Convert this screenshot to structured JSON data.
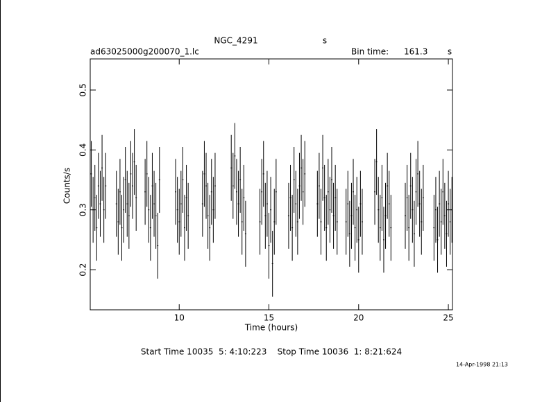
{
  "chart_data": {
    "type": "errorbar",
    "title": "NGC_4291",
    "title_unit": "s",
    "file_name": "ad63025000g200070_1.lc",
    "bin_time_label": "Bin time:",
    "bin_time": 161.3,
    "bin_time_unit": "s",
    "xlabel": "Time (hours)",
    "ylabel": "Counts/s",
    "footer": "Start Time 10035  5: 4:10:223    Stop Time 10036  1: 8:21:624",
    "date": "14-Apr-1998 21:13",
    "xlim": [
      5.04,
      25.23
    ],
    "ylim": [
      0.133,
      0.552
    ],
    "xticks": [
      10,
      15,
      20,
      25
    ],
    "yticks": [
      0.2,
      0.3,
      0.4,
      0.5
    ],
    "grid": false,
    "color": "#000000",
    "yerr": 0.055,
    "x": [
      5.1,
      5.2,
      5.3,
      5.4,
      5.5,
      5.6,
      5.7,
      5.8,
      5.9,
      6.5,
      6.6,
      6.7,
      6.8,
      6.9,
      7.0,
      7.1,
      7.2,
      7.3,
      7.4,
      7.5,
      7.6,
      8.1,
      8.2,
      8.3,
      8.4,
      8.5,
      8.6,
      8.7,
      8.8,
      8.9,
      9.8,
      9.9,
      10.0,
      10.1,
      10.2,
      10.3,
      10.4,
      10.5,
      11.3,
      11.4,
      11.5,
      11.6,
      11.7,
      11.8,
      11.9,
      12.0,
      12.9,
      13.0,
      13.1,
      13.2,
      13.3,
      13.4,
      13.5,
      13.6,
      13.7,
      14.5,
      14.6,
      14.7,
      14.8,
      14.9,
      15.0,
      15.1,
      15.2,
      15.3,
      15.4,
      16.1,
      16.2,
      16.3,
      16.4,
      16.5,
      16.6,
      16.7,
      16.8,
      16.9,
      17.0,
      17.7,
      17.8,
      17.9,
      18.0,
      18.1,
      18.2,
      18.3,
      18.4,
      18.5,
      18.6,
      18.7,
      18.8,
      19.3,
      19.4,
      19.5,
      19.6,
      19.7,
      19.8,
      19.9,
      20.0,
      20.1,
      20.2,
      20.9,
      21.0,
      21.1,
      21.2,
      21.3,
      21.4,
      21.5,
      21.6,
      21.7,
      21.8,
      22.6,
      22.7,
      22.8,
      22.9,
      23.0,
      23.1,
      23.2,
      23.3,
      23.4,
      23.5,
      23.6,
      24.2,
      24.3,
      24.4,
      24.5,
      24.6,
      24.7,
      24.8,
      24.9,
      25.0,
      25.1,
      25.2
    ],
    "values": [
      0.36,
      0.3,
      0.32,
      0.27,
      0.34,
      0.31,
      0.37,
      0.3,
      0.34,
      0.31,
      0.28,
      0.33,
      0.27,
      0.3,
      0.35,
      0.31,
      0.29,
      0.36,
      0.34,
      0.38,
      0.32,
      0.33,
      0.36,
      0.3,
      0.27,
      0.34,
      0.31,
      0.29,
      0.24,
      0.35,
      0.33,
      0.3,
      0.28,
      0.31,
      0.35,
      0.27,
      0.32,
      0.29,
      0.31,
      0.36,
      0.34,
      0.29,
      0.27,
      0.33,
      0.3,
      0.34,
      0.37,
      0.34,
      0.39,
      0.33,
      0.31,
      0.35,
      0.28,
      0.32,
      0.26,
      0.28,
      0.33,
      0.36,
      0.29,
      0.31,
      0.24,
      0.3,
      0.21,
      0.28,
      0.33,
      0.29,
      0.32,
      0.27,
      0.35,
      0.31,
      0.28,
      0.34,
      0.37,
      0.33,
      0.36,
      0.31,
      0.34,
      0.28,
      0.37,
      0.32,
      0.27,
      0.33,
      0.3,
      0.35,
      0.29,
      0.32,
      0.28,
      0.28,
      0.31,
      0.26,
      0.29,
      0.33,
      0.27,
      0.3,
      0.25,
      0.31,
      0.28,
      0.33,
      0.38,
      0.3,
      0.27,
      0.32,
      0.25,
      0.29,
      0.34,
      0.31,
      0.27,
      0.29,
      0.32,
      0.27,
      0.34,
      0.3,
      0.26,
      0.33,
      0.36,
      0.31,
      0.28,
      0.32,
      0.27,
      0.3,
      0.25,
      0.31,
      0.28,
      0.33,
      0.29,
      0.26,
      0.31,
      0.28,
      0.3
    ]
  }
}
